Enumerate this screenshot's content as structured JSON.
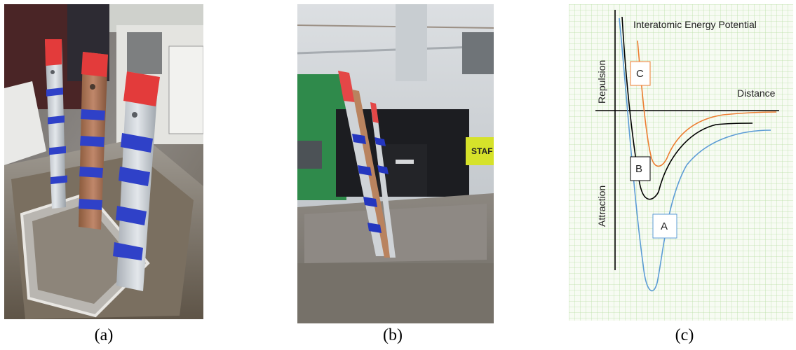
{
  "figure": {
    "panels": [
      {
        "id": "a",
        "caption": "(a)",
        "kind": "photo"
      },
      {
        "id": "b",
        "caption": "(b)",
        "kind": "photo",
        "sign_text": "STAF"
      },
      {
        "id": "c",
        "caption": "(c)",
        "kind": "diagram"
      }
    ]
  },
  "diagram": {
    "title": "Interatomic Energy Potential",
    "x_label": "Distance",
    "y_label_top": "Repulsion",
    "y_label_bottom": "Attraction",
    "curves": [
      {
        "label": "A",
        "color": "#5b9bd5"
      },
      {
        "label": "B",
        "color": "#000000"
      },
      {
        "label": "C",
        "color": "#ed7d31"
      }
    ],
    "grid_color": "#b9e0a5"
  }
}
